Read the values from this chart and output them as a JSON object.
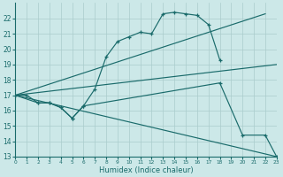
{
  "background_color": "#cce8e8",
  "grid_color": "#aacccc",
  "line_color": "#1a6b6b",
  "xlim": [
    0,
    23
  ],
  "ylim": [
    13,
    23
  ],
  "xlabel": "Humidex (Indice chaleur)",
  "xticks": [
    0,
    1,
    2,
    3,
    4,
    5,
    6,
    7,
    8,
    9,
    10,
    11,
    12,
    13,
    14,
    15,
    16,
    17,
    18,
    19,
    20,
    21,
    22,
    23
  ],
  "yticks": [
    13,
    14,
    15,
    16,
    17,
    18,
    19,
    20,
    21,
    22
  ],
  "line_arc": {
    "x": [
      0,
      1,
      2,
      3,
      4,
      5,
      6,
      7,
      8,
      9,
      10,
      11,
      12,
      13,
      14,
      15,
      16,
      17,
      18
    ],
    "y": [
      17,
      17,
      16.5,
      16.5,
      16.2,
      15.5,
      16.3,
      17.4,
      19.5,
      20.5,
      20.8,
      21.1,
      21.0,
      22.3,
      22.4,
      22.3,
      22.2,
      21.6,
      19.3
    ]
  },
  "line_rise": {
    "x": [
      0,
      22
    ],
    "y": [
      17,
      22.3
    ]
  },
  "line_fall": {
    "x": [
      0,
      23
    ],
    "y": [
      17,
      13
    ]
  },
  "line_gentle": {
    "x": [
      0,
      23
    ],
    "y": [
      17,
      19
    ]
  },
  "line_mixed": {
    "x": [
      0,
      2,
      3,
      4,
      5,
      6,
      18,
      20,
      22,
      23
    ],
    "y": [
      17,
      16.5,
      16.5,
      16.2,
      15.5,
      16.3,
      17.8,
      14.4,
      14.4,
      13.0
    ]
  }
}
